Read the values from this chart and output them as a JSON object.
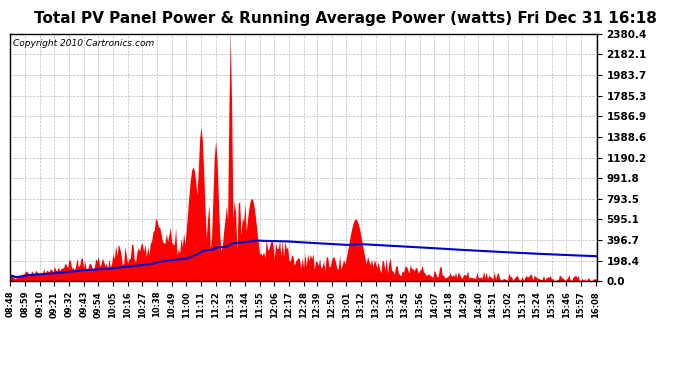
{
  "title": "Total PV Panel Power & Running Average Power (watts) Fri Dec 31 16:18",
  "copyright": "Copyright 2010 Cartronics.com",
  "background_color": "#ffffff",
  "plot_background": "#ffffff",
  "yticks": [
    0.0,
    198.4,
    396.7,
    595.1,
    793.5,
    991.8,
    1190.2,
    1388.6,
    1586.9,
    1785.3,
    1983.7,
    2182.1,
    2380.4
  ],
  "ymax": 2380.4,
  "ymin": 0.0,
  "bar_color": "#ff0000",
  "avg_color": "#0000cc",
  "grid_color": "#aaaaaa",
  "title_fontsize": 11,
  "xlabel_fontsize": 6,
  "ylabel_fontsize": 7.5
}
